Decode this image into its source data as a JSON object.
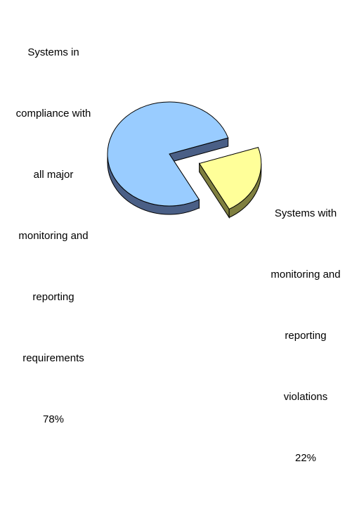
{
  "chart_data": {
    "type": "pie",
    "style": "3d-exploded",
    "slices": [
      {
        "label_lines": [
          "Systems in",
          "compliance with",
          "all major",
          "monitoring and",
          "reporting",
          "requirements"
        ],
        "percent_label": "78%",
        "value": 78,
        "color": "#99CCFF",
        "side_color": "#4A5F86"
      },
      {
        "label_lines": [
          "Systems with",
          "monitoring and",
          "reporting",
          "violations"
        ],
        "percent_label": "22%",
        "value": 22,
        "color": "#FFFF99",
        "side_color": "#7F7F3F",
        "exploded": true
      }
    ]
  }
}
